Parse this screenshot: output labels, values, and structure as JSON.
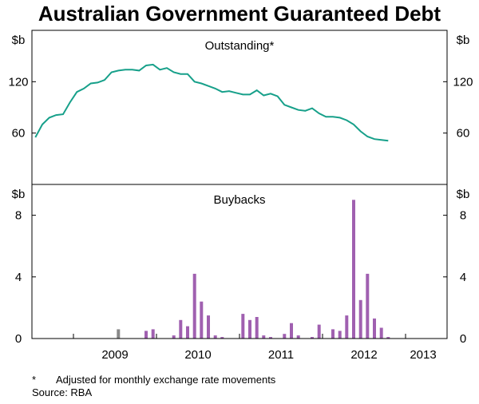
{
  "title": "Australian Government Guaranteed Debt",
  "footnote": {
    "marker": "*",
    "text": "Adjusted for monthly exchange rate movements"
  },
  "source": "Source: RBA",
  "colors": {
    "outstanding_line": "#17a08a",
    "buyback_bars": "#a060b0",
    "small_bars": "#888888",
    "axis": "#000000"
  },
  "chart_data": [
    {
      "type": "line",
      "title": "Outstanding*",
      "ylabel": "$b",
      "ylim": [
        0,
        180
      ],
      "yticks": [
        60,
        120
      ],
      "grid": false,
      "x": [
        "2008-07",
        "2008-08",
        "2008-09",
        "2008-10",
        "2008-11",
        "2008-12",
        "2009-01",
        "2009-02",
        "2009-03",
        "2009-04",
        "2009-05",
        "2009-06",
        "2009-07",
        "2009-08",
        "2009-09",
        "2009-10",
        "2009-11",
        "2009-12",
        "2010-01",
        "2010-02",
        "2010-03",
        "2010-04",
        "2010-05",
        "2010-06",
        "2010-07",
        "2010-08",
        "2010-09",
        "2010-10",
        "2010-11",
        "2010-12",
        "2011-01",
        "2011-02",
        "2011-03",
        "2011-04",
        "2011-05",
        "2011-06",
        "2011-07",
        "2011-08",
        "2011-09",
        "2011-10",
        "2011-11",
        "2011-12",
        "2012-01",
        "2012-02",
        "2012-03",
        "2012-04",
        "2012-05",
        "2012-06",
        "2012-07",
        "2012-08",
        "2012-09",
        "2012-10"
      ],
      "values": [
        55,
        70,
        78,
        81,
        82,
        96,
        108,
        112,
        118,
        119,
        122,
        131,
        133,
        134,
        134,
        133,
        139,
        140,
        134,
        136,
        131,
        129,
        129,
        120,
        118,
        115,
        112,
        108,
        109,
        107,
        105,
        105,
        110,
        104,
        106,
        103,
        93,
        90,
        87,
        86,
        89,
        83,
        79,
        79,
        78,
        75,
        70,
        62,
        56,
        53,
        52,
        51
      ]
    },
    {
      "type": "bar",
      "title": "Buybacks",
      "ylabel": "$b",
      "ylim": [
        0,
        10
      ],
      "yticks": [
        0,
        4,
        8
      ],
      "grid": false,
      "x": [
        "2009-07",
        "2009-11",
        "2009-12",
        "2010-03",
        "2010-04",
        "2010-05",
        "2010-06",
        "2010-07",
        "2010-08",
        "2010-09",
        "2010-10",
        "2011-01",
        "2011-02",
        "2011-03",
        "2011-04",
        "2011-05",
        "2011-07",
        "2011-08",
        "2011-09",
        "2011-11",
        "2011-12",
        "2012-02",
        "2012-03",
        "2012-04",
        "2012-05",
        "2012-06",
        "2012-07",
        "2012-08",
        "2012-09",
        "2012-10"
      ],
      "values": [
        0.6,
        0.5,
        0.6,
        0.2,
        1.2,
        0.8,
        4.2,
        2.4,
        1.5,
        0.2,
        0.1,
        1.6,
        1.2,
        1.4,
        0.2,
        0.1,
        0.3,
        1.0,
        0.2,
        0.1,
        0.9,
        0.6,
        0.5,
        1.5,
        9.0,
        2.5,
        4.2,
        1.3,
        0.7,
        0.1
      ]
    }
  ],
  "x_axis": {
    "year_labels": [
      "2009",
      "2010",
      "2011",
      "2012",
      "2013"
    ]
  }
}
